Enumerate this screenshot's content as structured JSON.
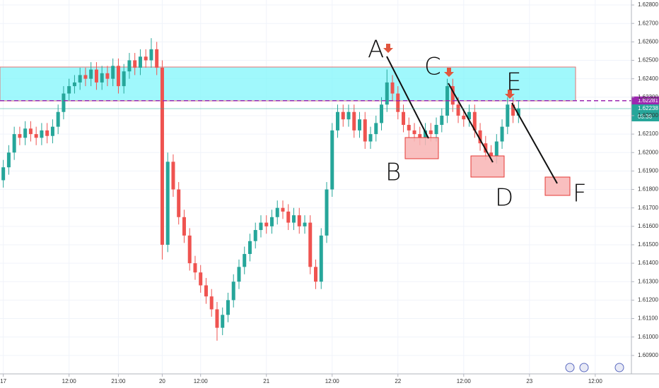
{
  "chart_data": {
    "type": "candlestick",
    "up_color": "#26a69a",
    "down_color": "#ef5350",
    "grid": true,
    "xlim": [
      -0.6,
      114.6
    ],
    "xticks": [
      {
        "value": 0,
        "label": "17"
      },
      {
        "value": 12,
        "label": "12:00"
      },
      {
        "value": 21,
        "label": "21:00"
      },
      {
        "value": 29,
        "label": "20"
      },
      {
        "value": 36,
        "label": "12:00"
      },
      {
        "value": 48,
        "label": "21"
      },
      {
        "value": 60,
        "label": "12:00"
      },
      {
        "value": 72,
        "label": "22"
      },
      {
        "value": 84,
        "label": "12:00"
      },
      {
        "value": 96,
        "label": "23"
      },
      {
        "value": 108,
        "label": "12:00"
      }
    ],
    "ylim": [
      1.608,
      1.62827
    ],
    "yticks": [
      {
        "value": 1.628,
        "label": "1.62800"
      },
      {
        "value": 1.627,
        "label": "1.62700"
      },
      {
        "value": 1.626,
        "label": "1.62600"
      },
      {
        "value": 1.625,
        "label": "1.62500"
      },
      {
        "value": 1.624,
        "label": "1.62400"
      },
      {
        "value": 1.623,
        "label": "1.62300"
      },
      {
        "value": 1.622,
        "label": "1.62200"
      },
      {
        "value": 1.621,
        "label": "1.62100"
      },
      {
        "value": 1.62,
        "label": "1.62000"
      },
      {
        "value": 1.619,
        "label": "1.61900"
      },
      {
        "value": 1.618,
        "label": "1.61800"
      },
      {
        "value": 1.617,
        "label": "1.61700"
      },
      {
        "value": 1.616,
        "label": "1.61600"
      },
      {
        "value": 1.615,
        "label": "1.61500"
      },
      {
        "value": 1.614,
        "label": "1.61400"
      },
      {
        "value": 1.613,
        "label": "1.61300"
      },
      {
        "value": 1.612,
        "label": "1.61200"
      },
      {
        "value": 1.611,
        "label": "1.61100"
      },
      {
        "value": 1.61,
        "label": "1.61000"
      },
      {
        "value": 1.609,
        "label": "1.60900"
      }
    ],
    "open": [
      1.6185,
      1.6192,
      1.62,
      1.621,
      1.6208,
      1.6213,
      1.621,
      1.6208,
      1.6212,
      1.6209,
      1.6214,
      1.6222,
      1.6232,
      1.6236,
      1.6238,
      1.6242,
      1.624,
      1.6245,
      1.6238,
      1.6243,
      1.624,
      1.6247,
      1.6236,
      1.6244,
      1.625,
      1.6246,
      1.6252,
      1.625,
      1.6256,
      1.6246,
      1.615,
      1.6195,
      1.618,
      1.6165,
      1.6155,
      1.614,
      1.6135,
      1.6128,
      1.6122,
      1.6115,
      1.6105,
      1.6112,
      1.612,
      1.613,
      1.6138,
      1.6145,
      1.6152,
      1.6158,
      1.6162,
      1.616,
      1.6165,
      1.617,
      1.6168,
      1.6162,
      1.6166,
      1.616,
      1.6162,
      1.6138,
      1.613,
      1.6155,
      1.618,
      1.6212,
      1.6222,
      1.6218,
      1.6222,
      1.6212,
      1.6218,
      1.6206,
      1.621,
      1.6216,
      1.6226,
      1.6238,
      1.6232,
      1.6222,
      1.6215,
      1.6212,
      1.621,
      1.6208,
      1.6212,
      1.621,
      1.6215,
      1.622,
      1.6236,
      1.6226,
      1.622,
      1.6218,
      1.6222,
      1.6212,
      1.6205,
      1.62,
      1.6198,
      1.6206,
      1.6214,
      1.6226,
      1.622
    ],
    "high": [
      1.6196,
      1.6204,
      1.6214,
      1.6214,
      1.6217,
      1.6217,
      1.6214,
      1.6216,
      1.6216,
      1.6218,
      1.6226,
      1.6236,
      1.624,
      1.6242,
      1.6246,
      1.6246,
      1.6249,
      1.6249,
      1.6247,
      1.6247,
      1.6251,
      1.6251,
      1.6248,
      1.6254,
      1.6254,
      1.6256,
      1.6256,
      1.6262,
      1.626,
      1.625,
      1.62,
      1.6199,
      1.6184,
      1.6169,
      1.6159,
      1.6144,
      1.6139,
      1.6132,
      1.6126,
      1.6119,
      1.6116,
      1.6124,
      1.6134,
      1.6142,
      1.6149,
      1.6156,
      1.6162,
      1.6166,
      1.6166,
      1.6169,
      1.6174,
      1.6174,
      1.6172,
      1.617,
      1.617,
      1.6166,
      1.6166,
      1.6142,
      1.6159,
      1.6184,
      1.6216,
      1.6226,
      1.6226,
      1.6226,
      1.6226,
      1.6222,
      1.6222,
      1.6214,
      1.622,
      1.623,
      1.6245,
      1.6242,
      1.6236,
      1.6226,
      1.6219,
      1.6216,
      1.6214,
      1.6216,
      1.6216,
      1.6219,
      1.6224,
      1.624,
      1.624,
      1.623,
      1.6224,
      1.6226,
      1.6226,
      1.6216,
      1.6209,
      1.6204,
      1.621,
      1.6218,
      1.623,
      1.623,
      1.6228
    ],
    "low": [
      1.6181,
      1.6188,
      1.6196,
      1.6204,
      1.6204,
      1.6206,
      1.6204,
      1.6204,
      1.6205,
      1.6205,
      1.621,
      1.6218,
      1.6228,
      1.6232,
      1.6234,
      1.6236,
      1.6236,
      1.6234,
      1.6234,
      1.6236,
      1.6236,
      1.6232,
      1.6232,
      1.624,
      1.6242,
      1.6242,
      1.6246,
      1.6246,
      1.6242,
      1.6142,
      1.6146,
      1.6176,
      1.6161,
      1.6151,
      1.6136,
      1.6131,
      1.6124,
      1.6118,
      1.6111,
      1.6098,
      1.6101,
      1.6108,
      1.6116,
      1.6126,
      1.6134,
      1.6141,
      1.6148,
      1.6154,
      1.6156,
      1.6156,
      1.6161,
      1.6164,
      1.6158,
      1.6158,
      1.6156,
      1.6156,
      1.6134,
      1.6126,
      1.6126,
      1.6151,
      1.6176,
      1.6208,
      1.6214,
      1.6214,
      1.6208,
      1.6208,
      1.6202,
      1.6202,
      1.6206,
      1.6212,
      1.6222,
      1.6228,
      1.6218,
      1.6211,
      1.6208,
      1.6206,
      1.6204,
      1.6204,
      1.6206,
      1.6206,
      1.6211,
      1.6216,
      1.6222,
      1.6216,
      1.6214,
      1.6214,
      1.6208,
      1.6201,
      1.6196,
      1.6194,
      1.6194,
      1.6202,
      1.621,
      1.6216,
      1.6216
    ],
    "close": [
      1.6192,
      1.62,
      1.621,
      1.6208,
      1.6213,
      1.621,
      1.6208,
      1.6212,
      1.6209,
      1.6214,
      1.6222,
      1.6232,
      1.6236,
      1.6238,
      1.6242,
      1.624,
      1.6245,
      1.6238,
      1.6243,
      1.624,
      1.6247,
      1.6236,
      1.6244,
      1.625,
      1.6246,
      1.6252,
      1.625,
      1.6256,
      1.6246,
      1.615,
      1.6195,
      1.618,
      1.6165,
      1.6155,
      1.614,
      1.6135,
      1.6128,
      1.6122,
      1.6115,
      1.6105,
      1.6112,
      1.612,
      1.613,
      1.6138,
      1.6145,
      1.6152,
      1.6158,
      1.6162,
      1.616,
      1.6165,
      1.617,
      1.6168,
      1.6162,
      1.6166,
      1.616,
      1.6162,
      1.6138,
      1.613,
      1.6155,
      1.618,
      1.6212,
      1.6222,
      1.6218,
      1.6222,
      1.6212,
      1.6218,
      1.6206,
      1.621,
      1.6216,
      1.6226,
      1.6238,
      1.6232,
      1.6222,
      1.6215,
      1.6212,
      1.621,
      1.6208,
      1.6212,
      1.621,
      1.6215,
      1.622,
      1.6236,
      1.6226,
      1.622,
      1.6218,
      1.6222,
      1.6212,
      1.6205,
      1.62,
      1.6198,
      1.6206,
      1.6214,
      1.6226,
      1.622,
      1.6224
    ],
    "level_line": {
      "value": 1.62281,
      "label": "1.62281",
      "color": "#9c27b0"
    },
    "last_price": {
      "value": 1.62238,
      "label": "1.62238",
      "countdown": "03:36",
      "color": "#26a69a"
    },
    "annotations": [
      "A",
      "B",
      "C",
      "D",
      "E",
      "F"
    ]
  }
}
